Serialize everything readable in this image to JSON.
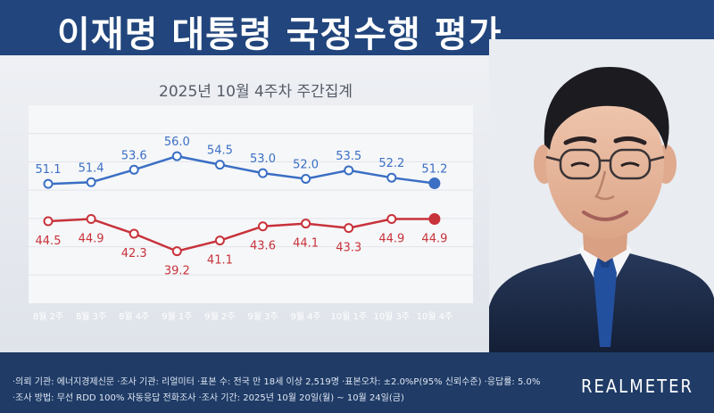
{
  "header": {
    "title": "이재명 대통령 국정수행 평가"
  },
  "subtitle": "2025년 10월 4주차 주간집계",
  "chart_data": {
    "type": "line",
    "categories": [
      "8월 2주",
      "8월 3주",
      "8월 4주",
      "9월 1주",
      "9월 2주",
      "9월 3주",
      "9월 4주",
      "10월 1주",
      "10월 3주",
      "10월 4주"
    ],
    "series": [
      {
        "values": [
          51.1,
          51.4,
          53.6,
          56.0,
          54.5,
          53.0,
          52.0,
          53.5,
          52.2,
          51.2
        ],
        "color": "#3a6fc4"
      },
      {
        "values": [
          44.5,
          44.9,
          42.3,
          39.2,
          41.1,
          43.6,
          44.1,
          43.3,
          44.9,
          44.9
        ],
        "color": "#c8323a"
      }
    ],
    "value_labels": {
      "s0": [
        "51.1",
        "51.4",
        "53.6",
        "56.0",
        "54.5",
        "53.0",
        "52.0",
        "53.5",
        "52.2",
        "51.2"
      ],
      "s1": [
        "44.5",
        "44.9",
        "42.3",
        "39.2",
        "41.1",
        "43.6",
        "44.1",
        "43.3",
        "44.9",
        "44.9"
      ]
    },
    "ylim": [
      30,
      65
    ],
    "grid": true
  },
  "footer": {
    "line1": "·의뢰 기관: 에너지경제신문 ·조사 기관: 리얼미터 ·표본 수: 전국 만 18세 이상 2,519명 ·표본오차: ±2.0%P(95% 신뢰수준) ·응답률: 5.0%",
    "line2": "·조사 방법: 무선 RDD 100% 자동응답 전화조사 ·조사 기간: 2025년 10월 20일(월) ~ 10월 24일(금)"
  },
  "brand": "REALMETER",
  "icons": {
    "portrait": "person-portrait"
  }
}
